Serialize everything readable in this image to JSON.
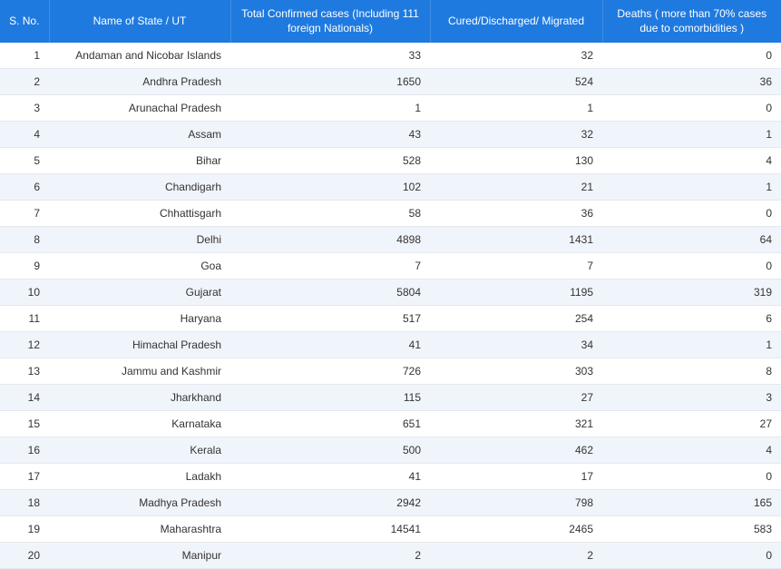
{
  "table": {
    "columns": [
      "S. No.",
      "Name of State / UT",
      "Total Confirmed cases (Including 111 foreign Nationals)",
      "Cured/Discharged/\nMigrated",
      "Deaths ( more than 70% cases due to comorbidities )"
    ],
    "rows": [
      {
        "sno": 1,
        "name": "Andaman and Nicobar Islands",
        "confirmed": 33,
        "cured": 32,
        "deaths": 0
      },
      {
        "sno": 2,
        "name": "Andhra Pradesh",
        "confirmed": 1650,
        "cured": 524,
        "deaths": 36
      },
      {
        "sno": 3,
        "name": "Arunachal Pradesh",
        "confirmed": 1,
        "cured": 1,
        "deaths": 0
      },
      {
        "sno": 4,
        "name": "Assam",
        "confirmed": 43,
        "cured": 32,
        "deaths": 1
      },
      {
        "sno": 5,
        "name": "Bihar",
        "confirmed": 528,
        "cured": 130,
        "deaths": 4
      },
      {
        "sno": 6,
        "name": "Chandigarh",
        "confirmed": 102,
        "cured": 21,
        "deaths": 1
      },
      {
        "sno": 7,
        "name": "Chhattisgarh",
        "confirmed": 58,
        "cured": 36,
        "deaths": 0
      },
      {
        "sno": 8,
        "name": "Delhi",
        "confirmed": 4898,
        "cured": 1431,
        "deaths": 64
      },
      {
        "sno": 9,
        "name": "Goa",
        "confirmed": 7,
        "cured": 7,
        "deaths": 0
      },
      {
        "sno": 10,
        "name": "Gujarat",
        "confirmed": 5804,
        "cured": 1195,
        "deaths": 319
      },
      {
        "sno": 11,
        "name": "Haryana",
        "confirmed": 517,
        "cured": 254,
        "deaths": 6
      },
      {
        "sno": 12,
        "name": "Himachal Pradesh",
        "confirmed": 41,
        "cured": 34,
        "deaths": 1
      },
      {
        "sno": 13,
        "name": "Jammu and Kashmir",
        "confirmed": 726,
        "cured": 303,
        "deaths": 8
      },
      {
        "sno": 14,
        "name": "Jharkhand",
        "confirmed": 115,
        "cured": 27,
        "deaths": 3
      },
      {
        "sno": 15,
        "name": "Karnataka",
        "confirmed": 651,
        "cured": 321,
        "deaths": 27
      },
      {
        "sno": 16,
        "name": "Kerala",
        "confirmed": 500,
        "cured": 462,
        "deaths": 4
      },
      {
        "sno": 17,
        "name": "Ladakh",
        "confirmed": 41,
        "cured": 17,
        "deaths": 0
      },
      {
        "sno": 18,
        "name": "Madhya Pradesh",
        "confirmed": 2942,
        "cured": 798,
        "deaths": 165
      },
      {
        "sno": 19,
        "name": "Maharashtra",
        "confirmed": 14541,
        "cured": 2465,
        "deaths": 583
      },
      {
        "sno": 20,
        "name": "Manipur",
        "confirmed": 2,
        "cured": 2,
        "deaths": 0
      }
    ],
    "header_bg": "#1f7ae0",
    "header_fg": "#ffffff",
    "row_even_bg": "#f0f5fb",
    "row_odd_bg": "#ffffff",
    "border_color": "#e5e8ec",
    "font_size": 12
  }
}
